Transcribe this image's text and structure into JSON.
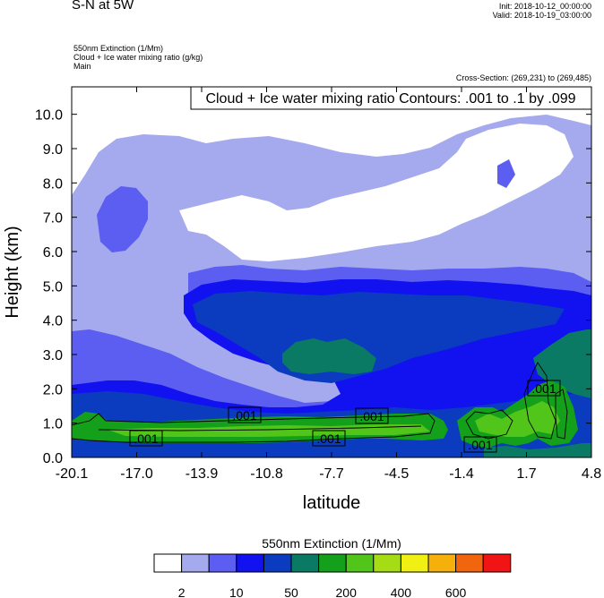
{
  "header": {
    "title": "S-N at 5W",
    "init": "Init: 2018-10-12_00:00:00",
    "valid": "Valid: 2018-10-19_03:00:00",
    "field1": "550nm Extinction   (1/Mm)",
    "field2": "Cloud + Ice water mixing ratio   (g/kg)",
    "field3": "Main",
    "cross_section": "Cross-Section: (269,231) to (269,485)"
  },
  "chart_data": {
    "type": "heatmap",
    "overlay_title": "Cloud + Ice water mixing ratio Contours: .001 to .1 by .099",
    "xlabel": "latitude",
    "ylabel": "Height (km)",
    "xticks": [
      "-20.1",
      "-17.0",
      "-13.9",
      "-10.8",
      "-7.7",
      "-4.5",
      "-1.4",
      "1.7",
      "4.8"
    ],
    "yticks": [
      "0.0",
      "1.0",
      "2.0",
      "3.0",
      "4.0",
      "5.0",
      "6.0",
      "7.0",
      "8.0",
      "9.0",
      "10.0"
    ],
    "xlim": [
      -20.1,
      4.8
    ],
    "ylim": [
      0,
      10.8
    ],
    "contour_labels": [
      ".001",
      ".001",
      ".001",
      ".001",
      ".001",
      ".001"
    ],
    "colorbar": {
      "title": "550nm Extinction  (1/Mm)",
      "colors": [
        "#ffffff",
        "#a5a9ee",
        "#5b5ef0",
        "#1212f0",
        "#0b3cbf",
        "#0a7a64",
        "#14a01a",
        "#52c51a",
        "#a5dc13",
        "#f0f014",
        "#f5b00c",
        "#f2650f",
        "#f01414"
      ],
      "labels": [
        "2",
        "10",
        "50",
        "200",
        "400",
        "600"
      ]
    }
  }
}
